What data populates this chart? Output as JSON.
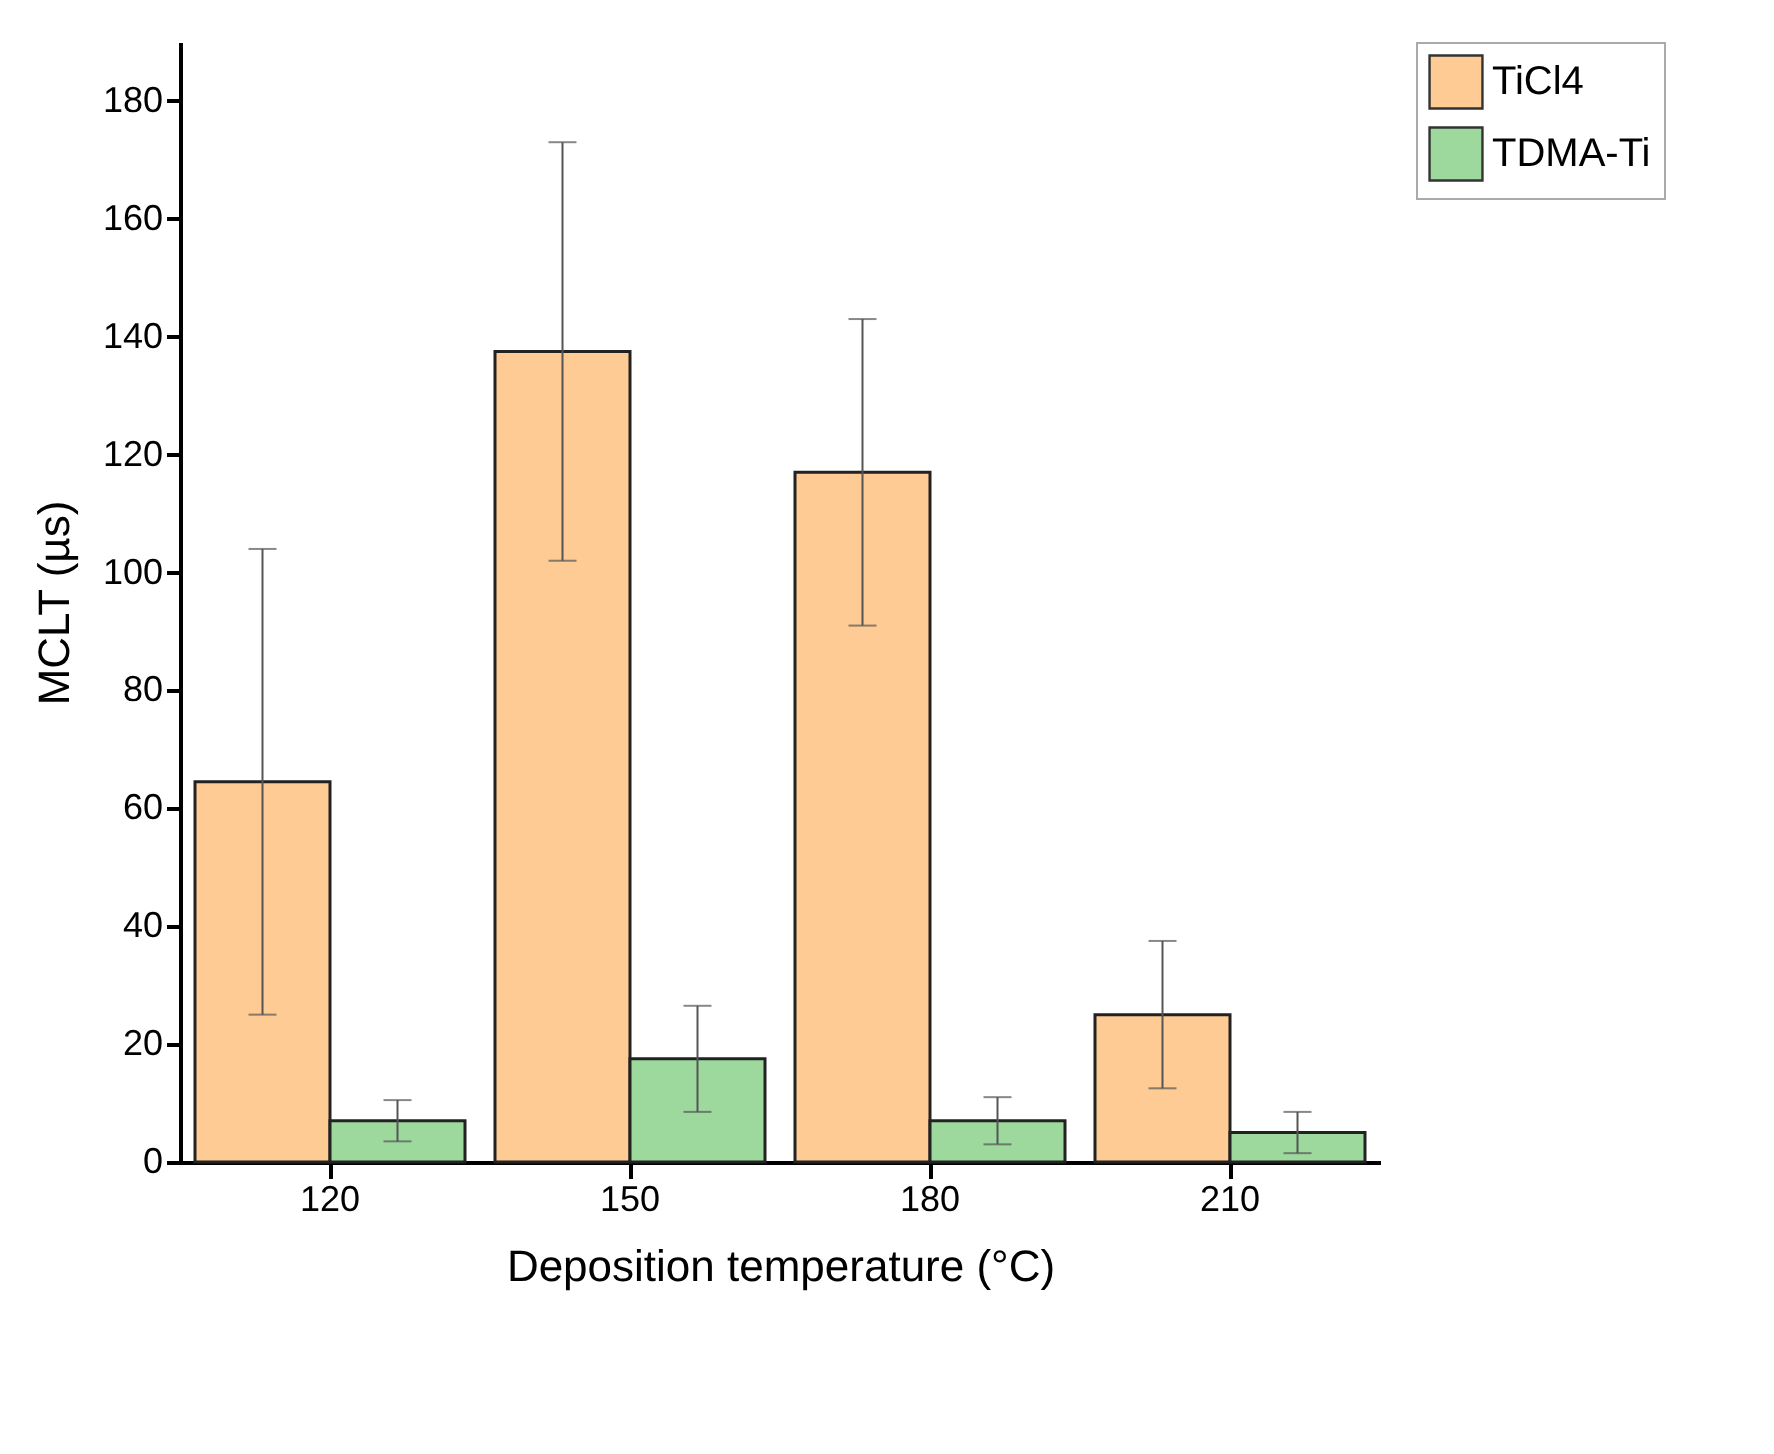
{
  "chart_data": {
    "type": "bar",
    "xlabel": "Deposition temperature (°C)",
    "ylabel": "MCLT (µs)",
    "categories": [
      "120",
      "150",
      "180",
      "210"
    ],
    "series": [
      {
        "name": "TiCl4",
        "color": "#fdcb93",
        "values": [
          64.5,
          137.5,
          117,
          25
        ],
        "errors": [
          39.5,
          35.5,
          26,
          12.5
        ]
      },
      {
        "name": "TDMA-Ti",
        "color": "#9dd89d",
        "values": [
          7,
          17.5,
          7,
          5
        ],
        "errors": [
          3.5,
          9,
          4,
          3.5
        ]
      }
    ],
    "ylim": [
      0,
      190
    ],
    "yticks": [
      0,
      20,
      40,
      60,
      80,
      100,
      120,
      140,
      160,
      180
    ],
    "grid": false,
    "legend": "top right"
  }
}
